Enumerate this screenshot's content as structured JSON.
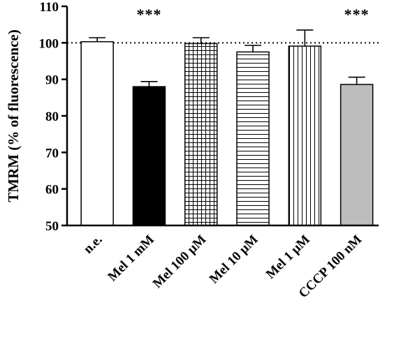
{
  "chart_data": {
    "type": "bar",
    "title": "",
    "xlabel": "",
    "ylabel": "TMRM (% of fluorescence)",
    "ylim": [
      50,
      110
    ],
    "yticks": [
      50,
      60,
      70,
      80,
      90,
      100,
      110
    ],
    "reference_line": {
      "y": 100,
      "style": "dotted"
    },
    "grid": false,
    "categories": [
      "n.e.",
      "Mel 1 mM",
      "Mel 100 µM",
      "Mel 10 µM",
      "Mel 1 µM",
      "CCCP 100 nM"
    ],
    "values": [
      100.3,
      88.0,
      99.8,
      97.5,
      99.1,
      88.6
    ],
    "errors": [
      1.1,
      1.4,
      1.6,
      1.8,
      4.4,
      2.0
    ],
    "significance": [
      "",
      "***",
      "",
      "",
      "",
      "***"
    ],
    "fills": [
      "white",
      "black",
      "grid",
      "horizontal-lines",
      "vertical-lines",
      "gray"
    ],
    "colors": {
      "bar_edge": "#000000",
      "solid_black": "#000000",
      "gray": "#bdbdbd",
      "pattern_stroke": "#000000"
    }
  }
}
